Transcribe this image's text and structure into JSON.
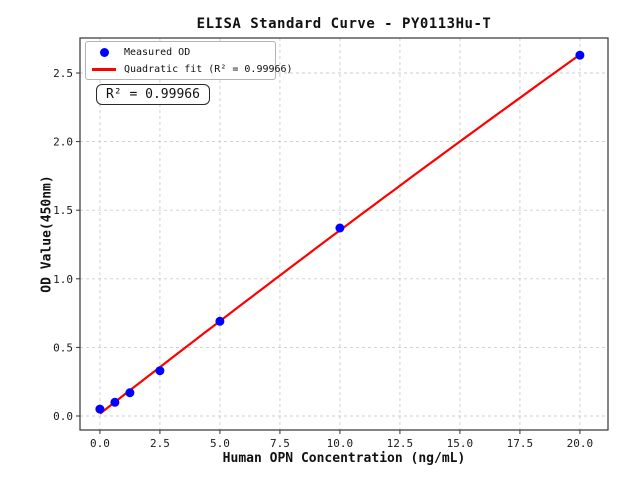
{
  "chart_data": {
    "type": "scatter",
    "title": "ELISA Standard Curve - PY0113Hu-T",
    "xlabel": "Human OPN Concentration (ng/mL)",
    "ylabel": "OD Value(450nm)",
    "xlim": [
      -0.83,
      21.17
    ],
    "ylim": [
      -0.102,
      2.755
    ],
    "xticks": [
      0.0,
      2.5,
      5.0,
      7.5,
      10.0,
      12.5,
      15.0,
      17.5,
      20.0
    ],
    "xtick_labels": [
      "0.0",
      "2.5",
      "5.0",
      "7.5",
      "10.0",
      "12.5",
      "15.0",
      "17.5",
      "20.0"
    ],
    "yticks": [
      0.0,
      0.5,
      1.0,
      1.5,
      2.0,
      2.5
    ],
    "ytick_labels": [
      "0.0",
      "0.5",
      "1.0",
      "1.5",
      "2.0",
      "2.5"
    ],
    "grid": true,
    "legend_position": "upper-left",
    "series": [
      {
        "name": "Measured OD",
        "type": "scatter",
        "color": "#0000ff",
        "x": [
          0,
          0.625,
          1.25,
          2.5,
          5,
          10,
          20
        ],
        "y": [
          0.05,
          0.1,
          0.17,
          0.33,
          0.69,
          1.37,
          2.63
        ]
      },
      {
        "name": "Quadratic fit (R² = 0.99966)",
        "type": "quadratic-fit",
        "color": "#ff0000"
      }
    ],
    "annotation": "R² = 0.99966",
    "r_squared": 0.99966,
    "style": {
      "grid_color": "#cccccc",
      "frame_color": "#333333",
      "background": "#ffffff"
    }
  }
}
